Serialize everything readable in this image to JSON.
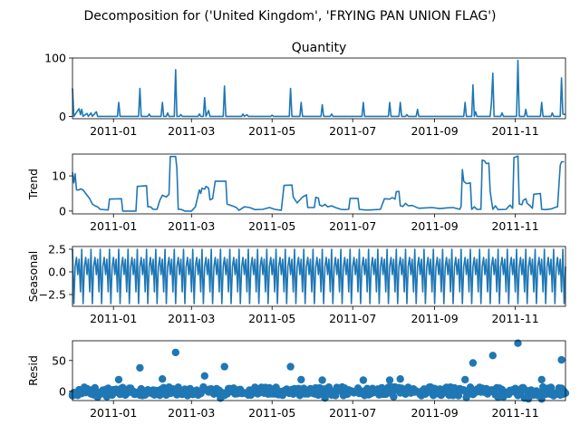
{
  "chart_data": {
    "type": "line",
    "title": "Decomposition for ('United Kingdom', 'FRYING PAN UNION FLAG')",
    "x_tick_labels": [
      "2011-01",
      "2011-03",
      "2011-05",
      "2011-07",
      "2011-09",
      "2011-11"
    ],
    "x_ticks": [
      "2011-01-01",
      "2011-03-01",
      "2011-05-01",
      "2011-07-01",
      "2011-09-01",
      "2011-11-01"
    ],
    "x_range": [
      "2010-12-01",
      "2011-12-09"
    ],
    "line_color": "#1f77b4",
    "panels": [
      {
        "name": "Quantity",
        "subplot_title": "Quantity",
        "ylabel": "",
        "kind": "line",
        "ylim": [
          -4,
          100
        ],
        "yticks": [
          0,
          100
        ],
        "series": [
          [
            "2010-12-01",
            48
          ],
          [
            "2010-12-02",
            0
          ],
          [
            "2010-12-05",
            10
          ],
          [
            "2010-12-06",
            13
          ],
          [
            "2010-12-07",
            3
          ],
          [
            "2010-12-08",
            12
          ],
          [
            "2010-12-09",
            0
          ],
          [
            "2010-12-12",
            5
          ],
          [
            "2010-12-13",
            0
          ],
          [
            "2010-12-15",
            6
          ],
          [
            "2010-12-16",
            0
          ],
          [
            "2010-12-19",
            8
          ],
          [
            "2010-12-20",
            0
          ],
          [
            "2011-01-04",
            0
          ],
          [
            "2011-01-05",
            24
          ],
          [
            "2011-01-06",
            0
          ],
          [
            "2011-01-20",
            0
          ],
          [
            "2011-01-21",
            48
          ],
          [
            "2011-01-22",
            0
          ],
          [
            "2011-01-27",
            0
          ],
          [
            "2011-01-28",
            4
          ],
          [
            "2011-01-29",
            0
          ],
          [
            "2011-02-06",
            0
          ],
          [
            "2011-02-07",
            24
          ],
          [
            "2011-02-08",
            0
          ],
          [
            "2011-02-10",
            0
          ],
          [
            "2011-02-11",
            6
          ],
          [
            "2011-02-12",
            0
          ],
          [
            "2011-02-16",
            0
          ],
          [
            "2011-02-17",
            80
          ],
          [
            "2011-02-18",
            0
          ],
          [
            "2011-02-20",
            0
          ],
          [
            "2011-02-21",
            3
          ],
          [
            "2011-02-22",
            0
          ],
          [
            "2011-03-06",
            0
          ],
          [
            "2011-03-07",
            4
          ],
          [
            "2011-03-08",
            0
          ],
          [
            "2011-03-10",
            0
          ],
          [
            "2011-03-11",
            32
          ],
          [
            "2011-03-12",
            0
          ],
          [
            "2011-03-14",
            10
          ],
          [
            "2011-03-15",
            0
          ],
          [
            "2011-03-25",
            0
          ],
          [
            "2011-03-26",
            52
          ],
          [
            "2011-03-27",
            0
          ],
          [
            "2011-04-08",
            0
          ],
          [
            "2011-04-09",
            4
          ],
          [
            "2011-04-10",
            0
          ],
          [
            "2011-04-12",
            3
          ],
          [
            "2011-04-13",
            0
          ],
          [
            "2011-04-30",
            0
          ],
          [
            "2011-05-01",
            2
          ],
          [
            "2011-05-02",
            0
          ],
          [
            "2011-05-14",
            0
          ],
          [
            "2011-05-15",
            48
          ],
          [
            "2011-05-16",
            0
          ],
          [
            "2011-05-22",
            0
          ],
          [
            "2011-05-23",
            24
          ],
          [
            "2011-05-24",
            0
          ],
          [
            "2011-06-07",
            0
          ],
          [
            "2011-06-08",
            20
          ],
          [
            "2011-06-09",
            0
          ],
          [
            "2011-06-14",
            0
          ],
          [
            "2011-06-15",
            4
          ],
          [
            "2011-06-16",
            0
          ],
          [
            "2011-07-08",
            0
          ],
          [
            "2011-07-09",
            24
          ],
          [
            "2011-07-10",
            0
          ],
          [
            "2011-07-28",
            0
          ],
          [
            "2011-07-29",
            24
          ],
          [
            "2011-07-30",
            0
          ],
          [
            "2011-08-05",
            0
          ],
          [
            "2011-08-06",
            24
          ],
          [
            "2011-08-07",
            0
          ],
          [
            "2011-08-10",
            0
          ],
          [
            "2011-08-11",
            3
          ],
          [
            "2011-08-12",
            0
          ],
          [
            "2011-08-18",
            0
          ],
          [
            "2011-08-19",
            12
          ],
          [
            "2011-08-20",
            0
          ],
          [
            "2011-09-23",
            0
          ],
          [
            "2011-09-24",
            24
          ],
          [
            "2011-09-25",
            0
          ],
          [
            "2011-09-29",
            0
          ],
          [
            "2011-09-30",
            54
          ],
          [
            "2011-10-01",
            0
          ],
          [
            "2011-10-02",
            8
          ],
          [
            "2011-10-03",
            0
          ],
          [
            "2011-10-13",
            0
          ],
          [
            "2011-10-14",
            24
          ],
          [
            "2011-10-15",
            74
          ],
          [
            "2011-10-16",
            0
          ],
          [
            "2011-10-21",
            0
          ],
          [
            "2011-10-22",
            6
          ],
          [
            "2011-10-23",
            0
          ],
          [
            "2011-11-02",
            0
          ],
          [
            "2011-11-03",
            96
          ],
          [
            "2011-11-04",
            0
          ],
          [
            "2011-11-08",
            0
          ],
          [
            "2011-11-09",
            12
          ],
          [
            "2011-11-10",
            0
          ],
          [
            "2011-11-20",
            0
          ],
          [
            "2011-11-21",
            24
          ],
          [
            "2011-11-22",
            0
          ],
          [
            "2011-11-28",
            0
          ],
          [
            "2011-11-29",
            6
          ],
          [
            "2011-11-30",
            0
          ],
          [
            "2011-12-05",
            0
          ],
          [
            "2011-12-06",
            66
          ],
          [
            "2011-12-07",
            4
          ],
          [
            "2011-12-09",
            3
          ]
        ]
      },
      {
        "name": "Trend",
        "subplot_title": "",
        "ylabel": "Trend",
        "kind": "line",
        "ylim": [
          -0.8,
          16.2
        ],
        "yticks": [
          0,
          10
        ],
        "series": [
          [
            "2010-12-01",
            11
          ],
          [
            "2010-12-02",
            8
          ],
          [
            "2010-12-03",
            10.6
          ],
          [
            "2010-12-04",
            6
          ],
          [
            "2010-12-06",
            6
          ],
          [
            "2010-12-07",
            6.3
          ],
          [
            "2010-12-09",
            6
          ],
          [
            "2010-12-12",
            4.5
          ],
          [
            "2010-12-14",
            3.5
          ],
          [
            "2010-12-16",
            2
          ],
          [
            "2010-12-18",
            1.5
          ],
          [
            "2010-12-20",
            1.2
          ],
          [
            "2010-12-22",
            0.5
          ],
          [
            "2010-12-28",
            0.3
          ],
          [
            "2010-12-29",
            3.4
          ],
          [
            "2011-01-07",
            3.5
          ],
          [
            "2011-01-08",
            0
          ],
          [
            "2011-01-18",
            0
          ],
          [
            "2011-01-19",
            7
          ],
          [
            "2011-01-26",
            7.2
          ],
          [
            "2011-01-27",
            1.2
          ],
          [
            "2011-01-29",
            1.2
          ],
          [
            "2011-01-31",
            0.5
          ],
          [
            "2011-02-03",
            0.5
          ],
          [
            "2011-02-05",
            3
          ],
          [
            "2011-02-07",
            4.5
          ],
          [
            "2011-02-10",
            4
          ],
          [
            "2011-02-12",
            4.8
          ],
          [
            "2011-02-13",
            15.5
          ],
          [
            "2011-02-17",
            15.5
          ],
          [
            "2011-02-18",
            12
          ],
          [
            "2011-02-19",
            0.5
          ],
          [
            "2011-02-21",
            0.5
          ],
          [
            "2011-02-24",
            0
          ],
          [
            "2011-03-01",
            0
          ],
          [
            "2011-03-04",
            1.2
          ],
          [
            "2011-03-07",
            6
          ],
          [
            "2011-03-08",
            5
          ],
          [
            "2011-03-09",
            6.5
          ],
          [
            "2011-03-11",
            6.2
          ],
          [
            "2011-03-12",
            7
          ],
          [
            "2011-03-14",
            6.5
          ],
          [
            "2011-03-15",
            3.2
          ],
          [
            "2011-03-17",
            3.5
          ],
          [
            "2011-03-19",
            8.5
          ],
          [
            "2011-03-27",
            8.5
          ],
          [
            "2011-03-28",
            2
          ],
          [
            "2011-04-02",
            1.3
          ],
          [
            "2011-04-04",
            1
          ],
          [
            "2011-04-06",
            0.2
          ],
          [
            "2011-04-10",
            1.2
          ],
          [
            "2011-04-14",
            1
          ],
          [
            "2011-04-18",
            0.4
          ],
          [
            "2011-04-24",
            0.5
          ],
          [
            "2011-04-29",
            1
          ],
          [
            "2011-05-03",
            0.5
          ],
          [
            "2011-05-08",
            0.2
          ],
          [
            "2011-05-10",
            7.3
          ],
          [
            "2011-05-16",
            7.4
          ],
          [
            "2011-05-17",
            4
          ],
          [
            "2011-05-20",
            2.3
          ],
          [
            "2011-05-24",
            4
          ],
          [
            "2011-05-27",
            4.6
          ],
          [
            "2011-05-28",
            1
          ],
          [
            "2011-06-02",
            1
          ],
          [
            "2011-06-03",
            3.9
          ],
          [
            "2011-06-05",
            3.7
          ],
          [
            "2011-06-06",
            1.7
          ],
          [
            "2011-06-08",
            1.4
          ],
          [
            "2011-06-10",
            1.9
          ],
          [
            "2011-06-12",
            1.2
          ],
          [
            "2011-06-15",
            1.5
          ],
          [
            "2011-06-18",
            1
          ],
          [
            "2011-06-22",
            0.5
          ],
          [
            "2011-06-25",
            0.4
          ],
          [
            "2011-06-28",
            0.5
          ],
          [
            "2011-06-29",
            3.6
          ],
          [
            "2011-07-05",
            3.6
          ],
          [
            "2011-07-06",
            0.5
          ],
          [
            "2011-07-10",
            0.3
          ],
          [
            "2011-07-14",
            0.3
          ],
          [
            "2011-07-22",
            0.5
          ],
          [
            "2011-07-25",
            3.5
          ],
          [
            "2011-07-29",
            3.4
          ],
          [
            "2011-07-31",
            3.8
          ],
          [
            "2011-08-02",
            3.4
          ],
          [
            "2011-08-03",
            5.5
          ],
          [
            "2011-08-05",
            5.6
          ],
          [
            "2011-08-06",
            1.5
          ],
          [
            "2011-08-08",
            1.3
          ],
          [
            "2011-08-10",
            2.2
          ],
          [
            "2011-08-12",
            1.5
          ],
          [
            "2011-08-15",
            1.6
          ],
          [
            "2011-08-20",
            0.8
          ],
          [
            "2011-08-25",
            0.9
          ],
          [
            "2011-08-30",
            1
          ],
          [
            "2011-09-05",
            0.7
          ],
          [
            "2011-09-10",
            0.9
          ],
          [
            "2011-09-15",
            1
          ],
          [
            "2011-09-20",
            0.5
          ],
          [
            "2011-09-21",
            1.3
          ],
          [
            "2011-09-22",
            11.8
          ],
          [
            "2011-09-23",
            8.5
          ],
          [
            "2011-09-25",
            7.8
          ],
          [
            "2011-09-28",
            8
          ],
          [
            "2011-09-29",
            0.5
          ],
          [
            "2011-10-01",
            1.2
          ],
          [
            "2011-10-03",
            0.5
          ],
          [
            "2011-10-06",
            0.5
          ],
          [
            "2011-10-07",
            14.5
          ],
          [
            "2011-10-09",
            14.2
          ],
          [
            "2011-10-10",
            13.5
          ],
          [
            "2011-10-12",
            13.6
          ],
          [
            "2011-10-13",
            5.5
          ],
          [
            "2011-10-15",
            0.5
          ],
          [
            "2011-10-17",
            1.5
          ],
          [
            "2011-10-19",
            0.4
          ],
          [
            "2011-10-25",
            0.5
          ],
          [
            "2011-10-28",
            1.7
          ],
          [
            "2011-10-30",
            0.8
          ],
          [
            "2011-10-31",
            15.2
          ],
          [
            "2011-11-03",
            15.6
          ],
          [
            "2011-11-04",
            2
          ],
          [
            "2011-11-06",
            1.8
          ],
          [
            "2011-11-07",
            3
          ],
          [
            "2011-11-09",
            3.5
          ],
          [
            "2011-11-10",
            2.2
          ],
          [
            "2011-11-12",
            1.6
          ],
          [
            "2011-11-14",
            0.8
          ],
          [
            "2011-11-15",
            4.8
          ],
          [
            "2011-11-20",
            5
          ],
          [
            "2011-11-21",
            0.5
          ],
          [
            "2011-11-24",
            0.4
          ],
          [
            "2011-11-28",
            0.6
          ],
          [
            "2011-12-01",
            1
          ],
          [
            "2011-12-03",
            1.2
          ],
          [
            "2011-12-05",
            13
          ],
          [
            "2011-12-06",
            14
          ],
          [
            "2011-12-08",
            14
          ]
        ]
      },
      {
        "name": "Seasonal",
        "subplot_title": "",
        "ylabel": "Seasonal",
        "kind": "seasonal",
        "ylim": [
          -3.8,
          2.8
        ],
        "yticks": [
          2.5,
          0.0,
          -2.5
        ],
        "ytick_labels": [
          "2.5",
          "0.0",
          "−2.5"
        ],
        "period_days": 7,
        "pattern": [
          2.5,
          -3.5,
          0.6,
          1.6,
          -0.3,
          1.4,
          -2.2
        ]
      },
      {
        "name": "Resid",
        "subplot_title": "",
        "ylabel": "Resid",
        "kind": "scatter",
        "ylim": [
          -15,
          82
        ],
        "yticks": [
          0,
          50
        ],
        "base_noise": "dense near zero",
        "outliers": [
          [
            "2010-12-01",
            -5
          ],
          [
            "2011-01-05",
            19
          ],
          [
            "2011-01-21",
            38
          ],
          [
            "2011-02-07",
            20
          ],
          [
            "2011-02-17",
            63
          ],
          [
            "2011-03-11",
            25
          ],
          [
            "2011-03-26",
            40
          ],
          [
            "2011-05-15",
            40
          ],
          [
            "2011-05-23",
            19
          ],
          [
            "2011-06-08",
            18
          ],
          [
            "2011-07-09",
            18
          ],
          [
            "2011-07-29",
            18
          ],
          [
            "2011-08-06",
            20
          ],
          [
            "2011-09-24",
            19
          ],
          [
            "2011-09-30",
            46
          ],
          [
            "2011-10-15",
            58
          ],
          [
            "2011-11-03",
            78
          ],
          [
            "2011-11-21",
            19
          ],
          [
            "2011-12-06",
            51
          ]
        ]
      }
    ]
  }
}
